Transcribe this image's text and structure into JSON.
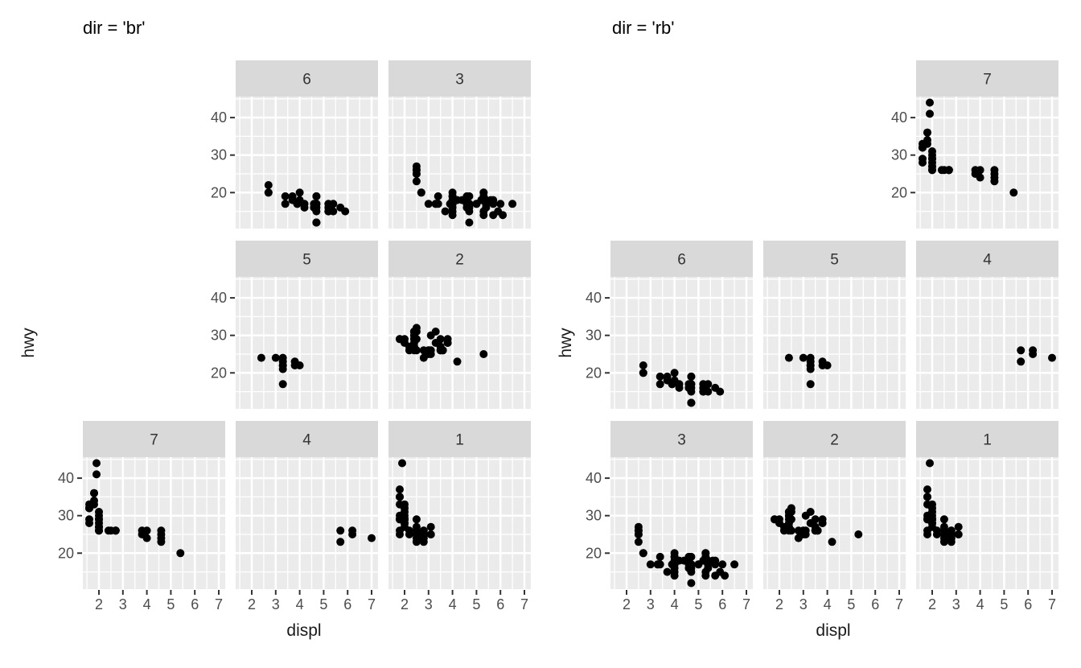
{
  "style": {
    "background": "#ffffff",
    "panel_bg": "#ebebeb",
    "strip_bg": "#d9d9d9",
    "strip_text": "#333333",
    "grid": "#ffffff",
    "point": "#000000",
    "tick_mark": "#333333",
    "tick_text": "#4d4d4d",
    "axis_title": "#1a1a1a",
    "title": "#000000"
  },
  "chart_data": [
    {
      "type": "scatter",
      "title": "dir = 'br'",
      "xlabel": "displ",
      "ylabel": "hwy",
      "x_ticks": [
        2,
        3,
        4,
        5,
        6,
        7
      ],
      "y_ticks": [
        20,
        30,
        40
      ],
      "x_minor": [
        1.5,
        2.5,
        3.5,
        4.5,
        5.5,
        6.5
      ],
      "y_minor": [
        15,
        25,
        35,
        45
      ],
      "xlim": [
        1.33,
        7.27
      ],
      "ylim": [
        10.4,
        45.6
      ],
      "grid": "on",
      "legend": "none",
      "facet_layout": [
        [
          null,
          "6",
          "3"
        ],
        [
          null,
          "5",
          "2"
        ],
        [
          "7",
          "4",
          "1"
        ]
      ]
    },
    {
      "type": "scatter",
      "title": "dir = 'rb'",
      "xlabel": "displ",
      "ylabel": "hwy",
      "x_ticks": [
        2,
        3,
        4,
        5,
        6,
        7
      ],
      "y_ticks": [
        20,
        30,
        40
      ],
      "x_minor": [
        1.5,
        2.5,
        3.5,
        4.5,
        5.5,
        6.5
      ],
      "y_minor": [
        15,
        25,
        35,
        45
      ],
      "xlim": [
        1.33,
        7.27
      ],
      "ylim": [
        10.4,
        45.6
      ],
      "grid": "on",
      "legend": "none",
      "facet_layout": [
        [
          null,
          null,
          "7"
        ],
        [
          "6",
          "5",
          "4"
        ],
        [
          "3",
          "2",
          "1"
        ]
      ]
    }
  ],
  "facet_points": {
    "1": [
      [
        1.8,
        29
      ],
      [
        1.8,
        29
      ],
      [
        2.0,
        31
      ],
      [
        2.0,
        30
      ],
      [
        2.8,
        26
      ],
      [
        2.8,
        26
      ],
      [
        3.1,
        27
      ],
      [
        1.8,
        26
      ],
      [
        1.8,
        25
      ],
      [
        2.0,
        28
      ],
      [
        2.0,
        27
      ],
      [
        2.8,
        25
      ],
      [
        2.8,
        25
      ],
      [
        3.1,
        25
      ],
      [
        3.1,
        25
      ],
      [
        2.2,
        26
      ],
      [
        2.2,
        25
      ],
      [
        2.5,
        26
      ],
      [
        2.5,
        26
      ],
      [
        2.5,
        25
      ],
      [
        2.5,
        27
      ],
      [
        2.5,
        24
      ],
      [
        2.5,
        23
      ],
      [
        1.8,
        30
      ],
      [
        1.8,
        33
      ],
      [
        1.8,
        35
      ],
      [
        1.8,
        35
      ],
      [
        1.8,
        37
      ],
      [
        2.0,
        29
      ],
      [
        2.0,
        29
      ],
      [
        2.0,
        28
      ],
      [
        2.0,
        29
      ],
      [
        2.8,
        24
      ],
      [
        1.9,
        44
      ],
      [
        2.0,
        29
      ],
      [
        2.0,
        33
      ],
      [
        2.0,
        32
      ],
      [
        2.0,
        29
      ],
      [
        2.5,
        26
      ],
      [
        2.5,
        29
      ],
      [
        2.8,
        24
      ],
      [
        2.8,
        23
      ]
    ],
    "2": [
      [
        2.8,
        24
      ],
      [
        3.1,
        25
      ],
      [
        4.2,
        23
      ],
      [
        2.4,
        27
      ],
      [
        2.4,
        30
      ],
      [
        3.1,
        26
      ],
      [
        3.5,
        29
      ],
      [
        3.6,
        26
      ],
      [
        2.4,
        26
      ],
      [
        2.4,
        27
      ],
      [
        2.4,
        30
      ],
      [
        2.4,
        31
      ],
      [
        2.5,
        26
      ],
      [
        2.5,
        29
      ],
      [
        3.3,
        28
      ],
      [
        2.4,
        29
      ],
      [
        2.4,
        31
      ],
      [
        2.5,
        31
      ],
      [
        2.5,
        32
      ],
      [
        3.5,
        27
      ],
      [
        3.5,
        26
      ],
      [
        3.0,
        26
      ],
      [
        3.0,
        25
      ],
      [
        3.5,
        26
      ],
      [
        3.1,
        30
      ],
      [
        3.8,
        28
      ],
      [
        3.8,
        29
      ],
      [
        3.8,
        28
      ],
      [
        5.3,
        25
      ],
      [
        2.2,
        26
      ],
      [
        2.2,
        27
      ],
      [
        2.4,
        28
      ],
      [
        2.4,
        31
      ],
      [
        3.0,
        26
      ],
      [
        3.3,
        31
      ],
      [
        1.8,
        29
      ],
      [
        1.8,
        29
      ],
      [
        2.0,
        28
      ],
      [
        2.0,
        29
      ],
      [
        2.8,
        26
      ],
      [
        3.6,
        26
      ]
    ],
    "3": [
      [
        5.3,
        20
      ],
      [
        5.3,
        15
      ],
      [
        5.3,
        20
      ],
      [
        5.7,
        17
      ],
      [
        6.0,
        17
      ],
      [
        5.3,
        14
      ],
      [
        5.3,
        19
      ],
      [
        5.7,
        14
      ],
      [
        6.5,
        17
      ],
      [
        3.9,
        17
      ],
      [
        4.7,
        17
      ],
      [
        4.7,
        12
      ],
      [
        4.7,
        17
      ],
      [
        4.7,
        16
      ],
      [
        5.2,
        18
      ],
      [
        5.9,
        15
      ],
      [
        4.6,
        17
      ],
      [
        5.4,
        17
      ],
      [
        5.4,
        18
      ],
      [
        4.0,
        17
      ],
      [
        4.0,
        17
      ],
      [
        4.0,
        16
      ],
      [
        4.0,
        18
      ],
      [
        4.6,
        18
      ],
      [
        5.0,
        17
      ],
      [
        3.0,
        17
      ],
      [
        3.7,
        15
      ],
      [
        4.0,
        17
      ],
      [
        4.0,
        19
      ],
      [
        4.0,
        14
      ],
      [
        4.7,
        17
      ],
      [
        4.7,
        19
      ],
      [
        6.1,
        14
      ],
      [
        4.0,
        15
      ],
      [
        4.2,
        18
      ],
      [
        4.4,
        18
      ],
      [
        4.6,
        16
      ],
      [
        5.4,
        17
      ],
      [
        5.4,
        16
      ],
      [
        5.4,
        18
      ],
      [
        4.0,
        17
      ],
      [
        4.0,
        19
      ],
      [
        4.6,
        19
      ],
      [
        5.0,
        17
      ],
      [
        3.3,
        17
      ],
      [
        3.3,
        17
      ],
      [
        4.0,
        20
      ],
      [
        5.6,
        18
      ],
      [
        2.5,
        26
      ],
      [
        2.5,
        25
      ],
      [
        2.5,
        27
      ],
      [
        2.5,
        23
      ],
      [
        2.5,
        25
      ],
      [
        2.5,
        26
      ],
      [
        2.7,
        20
      ],
      [
        2.7,
        20
      ],
      [
        3.4,
        19
      ],
      [
        3.4,
        17
      ],
      [
        4.0,
        18
      ],
      [
        4.7,
        17
      ],
      [
        4.7,
        15
      ],
      [
        5.7,
        18
      ]
    ],
    "4": [
      [
        5.7,
        26
      ],
      [
        5.7,
        23
      ],
      [
        6.2,
        26
      ],
      [
        6.2,
        25
      ],
      [
        7.0,
        24
      ]
    ],
    "5": [
      [
        2.4,
        24
      ],
      [
        3.0,
        24
      ],
      [
        3.3,
        24
      ],
      [
        3.3,
        22
      ],
      [
        3.3,
        22
      ],
      [
        3.3,
        17
      ],
      [
        3.3,
        21
      ],
      [
        3.3,
        23
      ],
      [
        3.8,
        23
      ],
      [
        3.8,
        22
      ],
      [
        4.0,
        22
      ]
    ],
    "6": [
      [
        3.7,
        19
      ],
      [
        3.7,
        18
      ],
      [
        3.9,
        17
      ],
      [
        3.9,
        17
      ],
      [
        4.7,
        19
      ],
      [
        4.7,
        19
      ],
      [
        4.7,
        12
      ],
      [
        5.2,
        17
      ],
      [
        5.2,
        15
      ],
      [
        4.7,
        16
      ],
      [
        4.7,
        12
      ],
      [
        4.7,
        17
      ],
      [
        4.7,
        15
      ],
      [
        4.7,
        12
      ],
      [
        4.7,
        17
      ],
      [
        5.2,
        16
      ],
      [
        5.2,
        15
      ],
      [
        5.7,
        16
      ],
      [
        5.9,
        15
      ],
      [
        4.2,
        17
      ],
      [
        4.2,
        16
      ],
      [
        4.6,
        16
      ],
      [
        4.6,
        16
      ],
      [
        4.6,
        17
      ],
      [
        5.4,
        15
      ],
      [
        5.4,
        17
      ],
      [
        2.7,
        20
      ],
      [
        2.7,
        20
      ],
      [
        2.7,
        22
      ],
      [
        3.4,
        17
      ],
      [
        3.4,
        19
      ],
      [
        4.0,
        18
      ],
      [
        4.0,
        20
      ]
    ],
    "7": [
      [
        3.8,
        26
      ],
      [
        3.8,
        25
      ],
      [
        4.0,
        26
      ],
      [
        4.0,
        24
      ],
      [
        4.6,
        25
      ],
      [
        4.6,
        24
      ],
      [
        4.6,
        26
      ],
      [
        4.6,
        23
      ],
      [
        5.4,
        20
      ],
      [
        1.6,
        33
      ],
      [
        1.6,
        32
      ],
      [
        1.6,
        32
      ],
      [
        1.6,
        29
      ],
      [
        1.6,
        32
      ],
      [
        1.8,
        34
      ],
      [
        1.8,
        36
      ],
      [
        1.8,
        36
      ],
      [
        2.0,
        29
      ],
      [
        2.0,
        26
      ],
      [
        2.0,
        27
      ],
      [
        2.0,
        30
      ],
      [
        2.0,
        31
      ],
      [
        2.7,
        26
      ],
      [
        2.7,
        26
      ],
      [
        2.7,
        26
      ],
      [
        1.9,
        44
      ],
      [
        1.9,
        41
      ],
      [
        2.0,
        29
      ],
      [
        2.0,
        26
      ],
      [
        2.0,
        28
      ],
      [
        1.6,
        28
      ],
      [
        1.8,
        33
      ],
      [
        2.0,
        27
      ],
      [
        2.4,
        26
      ],
      [
        2.5,
        26
      ]
    ]
  }
}
